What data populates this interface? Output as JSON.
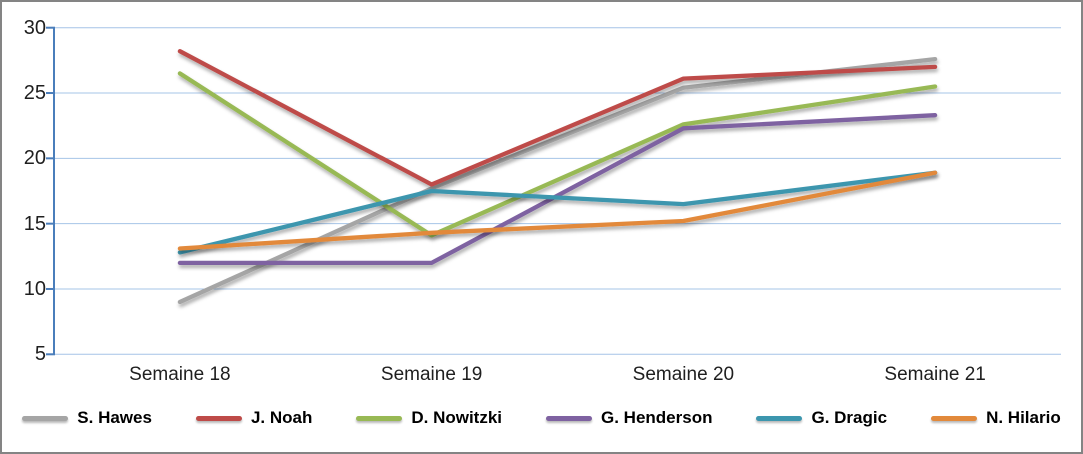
{
  "chart_data": {
    "type": "line",
    "title": "",
    "categories": [
      "Semaine 18",
      "Semaine 19",
      "Semaine 20",
      "Semaine 21"
    ],
    "series": [
      {
        "name": "S. Hawes",
        "color": "#A5A5A5",
        "values": [
          9,
          17.7,
          25.4,
          27.6
        ]
      },
      {
        "name": "J. Noah",
        "color": "#BE4B48",
        "values": [
          28.2,
          18,
          26.1,
          27
        ]
      },
      {
        "name": "D. Nowitzki",
        "color": "#98B954",
        "values": [
          26.5,
          14.1,
          22.6,
          25.5
        ]
      },
      {
        "name": "G. Henderson",
        "color": "#7E62A1",
        "values": [
          12,
          12,
          22.3,
          23.3
        ]
      },
      {
        "name": "G. Dragic",
        "color": "#3C96AE",
        "values": [
          12.8,
          17.5,
          16.5,
          18.9
        ]
      },
      {
        "name": "N. Hilario",
        "color": "#E2893B",
        "values": [
          13.1,
          14.3,
          15.2,
          18.9
        ]
      }
    ],
    "xlabel": "",
    "ylabel": "",
    "ylim": [
      5,
      30
    ],
    "yticks": [
      30,
      25,
      20,
      15,
      10,
      5
    ],
    "grid": true,
    "legend_position": "bottom",
    "axis_color": "#4A7EBB",
    "gridline_color": "#A6C4E7"
  }
}
